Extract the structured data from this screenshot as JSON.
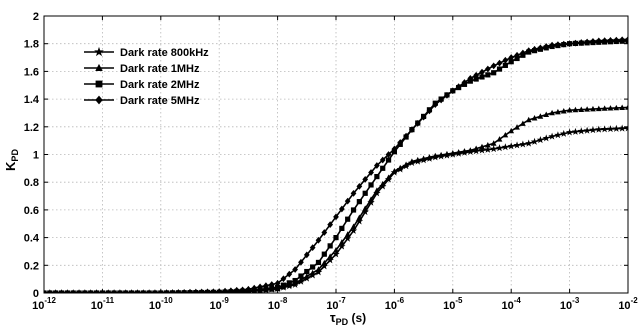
{
  "chart_data": {
    "type": "line",
    "x_scale": "log",
    "xlim": [
      1e-12,
      0.01
    ],
    "ylim": [
      0,
      2
    ],
    "grid": true,
    "legend_position": "top-left",
    "xlabel": "τ",
    "xlabel_sub": "PD",
    "xlabel_unit": " (s)",
    "ylabel": "K",
    "ylabel_sub": "PD",
    "x_ticks": [
      {
        "value": 1e-12,
        "mant": "10",
        "exp": "-12"
      },
      {
        "value": 1e-11,
        "mant": "10",
        "exp": "-11"
      },
      {
        "value": 1e-10,
        "mant": "10",
        "exp": "-10"
      },
      {
        "value": 1e-09,
        "mant": "10",
        "exp": "-9"
      },
      {
        "value": 1e-08,
        "mant": "10",
        "exp": "-8"
      },
      {
        "value": 1e-07,
        "mant": "10",
        "exp": "-7"
      },
      {
        "value": 1e-06,
        "mant": "10",
        "exp": "-6"
      },
      {
        "value": 1e-05,
        "mant": "10",
        "exp": "-5"
      },
      {
        "value": 0.0001,
        "mant": "10",
        "exp": "-4"
      },
      {
        "value": 0.001,
        "mant": "10",
        "exp": "-3"
      },
      {
        "value": 0.01,
        "mant": "10",
        "exp": "-2"
      }
    ],
    "y_ticks": [
      {
        "value": 0,
        "label": "0"
      },
      {
        "value": 0.2,
        "label": "0.2"
      },
      {
        "value": 0.4,
        "label": "0.4"
      },
      {
        "value": 0.6,
        "label": "0.6"
      },
      {
        "value": 0.8,
        "label": "0.8"
      },
      {
        "value": 1,
        "label": "1"
      },
      {
        "value": 1.2,
        "label": "1.2"
      },
      {
        "value": 1.4,
        "label": "1.4"
      },
      {
        "value": 1.6,
        "label": "1.6"
      },
      {
        "value": 1.8,
        "label": "1.8"
      },
      {
        "value": 2,
        "label": "2"
      }
    ],
    "series": [
      {
        "name": "Dark rate 800kHz",
        "marker": "star",
        "x": [
          1e-12,
          1e-10,
          1e-09,
          3e-09,
          1e-08,
          2e-08,
          5e-08,
          1e-07,
          2e-07,
          5e-07,
          1e-06,
          2e-06,
          5e-06,
          1e-05,
          2e-05,
          5e-05,
          0.0001,
          0.0002,
          0.0005,
          0.001,
          0.003,
          0.01
        ],
        "y": [
          0,
          0,
          0.005,
          0.01,
          0.03,
          0.06,
          0.15,
          0.28,
          0.45,
          0.72,
          0.87,
          0.94,
          0.98,
          1.0,
          1.02,
          1.04,
          1.06,
          1.08,
          1.13,
          1.16,
          1.18,
          1.19
        ]
      },
      {
        "name": "Dark rate 1MHz",
        "marker": "triangle",
        "x": [
          1e-12,
          1e-10,
          1e-09,
          3e-09,
          1e-08,
          2e-08,
          5e-08,
          1e-07,
          2e-07,
          5e-07,
          1e-06,
          2e-06,
          5e-06,
          1e-05,
          2e-05,
          5e-05,
          0.0001,
          0.0002,
          0.0005,
          0.001,
          0.003,
          0.01
        ],
        "y": [
          0,
          0,
          0.005,
          0.01,
          0.03,
          0.07,
          0.17,
          0.31,
          0.48,
          0.74,
          0.88,
          0.95,
          0.99,
          1.01,
          1.03,
          1.08,
          1.17,
          1.25,
          1.3,
          1.32,
          1.33,
          1.34
        ]
      },
      {
        "name": "Dark rate 2MHz",
        "marker": "square",
        "x": [
          1e-12,
          1e-10,
          1e-09,
          3e-09,
          1e-08,
          2e-08,
          5e-08,
          1e-07,
          2e-07,
          5e-07,
          1e-06,
          2e-06,
          5e-06,
          1e-05,
          2e-05,
          5e-05,
          0.0001,
          0.0002,
          0.0005,
          0.001,
          0.003,
          0.01
        ],
        "y": [
          0,
          0,
          0.005,
          0.015,
          0.04,
          0.09,
          0.22,
          0.4,
          0.6,
          0.84,
          1.02,
          1.18,
          1.37,
          1.46,
          1.53,
          1.59,
          1.67,
          1.74,
          1.78,
          1.8,
          1.81,
          1.82
        ]
      },
      {
        "name": "Dark rate 5MHz",
        "marker": "diamond",
        "x": [
          1e-12,
          1e-10,
          1e-09,
          3e-09,
          1e-08,
          2e-08,
          5e-08,
          1e-07,
          2e-07,
          5e-07,
          1e-06,
          2e-06,
          5e-06,
          1e-05,
          2e-05,
          5e-05,
          0.0001,
          0.0002,
          0.0005,
          0.001,
          0.003,
          0.01
        ],
        "y": [
          0,
          0,
          0.01,
          0.025,
          0.07,
          0.17,
          0.38,
          0.55,
          0.72,
          0.92,
          1.04,
          1.18,
          1.36,
          1.46,
          1.55,
          1.64,
          1.7,
          1.75,
          1.79,
          1.8,
          1.82,
          1.83
        ]
      }
    ]
  }
}
